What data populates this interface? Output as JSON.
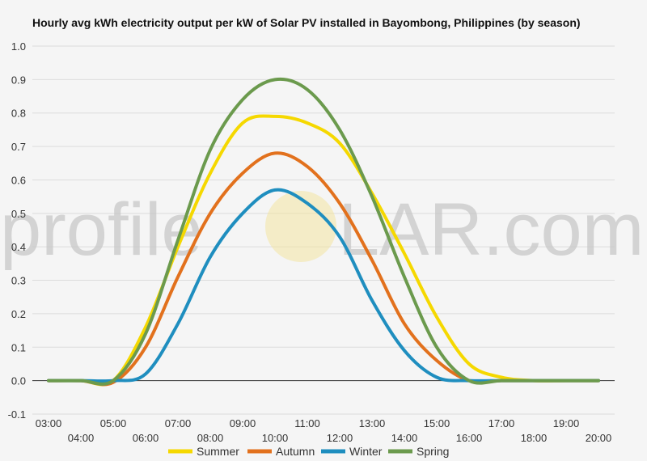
{
  "chart_data": {
    "type": "line",
    "title": "Hourly avg kWh electricity output per kW of Solar PV installed in Bayombong, Philippines (by season)",
    "xlabel": "",
    "ylabel": "",
    "ylim": [
      -0.1,
      1.0
    ],
    "yticks": [
      "1.0",
      "0.9",
      "0.8",
      "0.7",
      "0.6",
      "0.5",
      "0.4",
      "0.3",
      "0.2",
      "0.1",
      "0.0",
      "-0.1"
    ],
    "categories": [
      "03:00",
      "04:00",
      "05:00",
      "06:00",
      "07:00",
      "08:00",
      "09:00",
      "10:00",
      "11:00",
      "12:00",
      "13:00",
      "14:00",
      "15:00",
      "16:00",
      "17:00",
      "18:00",
      "19:00",
      "20:00"
    ],
    "grid": true,
    "legend_position": "bottom",
    "series": [
      {
        "name": "Summer",
        "color": "#f5d800",
        "values": [
          0,
          0,
          0,
          0.16,
          0.4,
          0.62,
          0.77,
          0.79,
          0.77,
          0.71,
          0.56,
          0.38,
          0.19,
          0.05,
          0.01,
          0,
          0,
          0
        ]
      },
      {
        "name": "Autumn",
        "color": "#e2711d",
        "values": [
          0,
          0,
          -0.005,
          0.1,
          0.31,
          0.5,
          0.62,
          0.68,
          0.64,
          0.53,
          0.36,
          0.17,
          0.06,
          0,
          0,
          0,
          0,
          0
        ]
      },
      {
        "name": "Winter",
        "color": "#1f8ebf",
        "values": [
          0,
          0,
          0,
          0.02,
          0.17,
          0.37,
          0.5,
          0.57,
          0.53,
          0.43,
          0.24,
          0.09,
          0.01,
          0,
          0,
          0,
          0,
          0
        ]
      },
      {
        "name": "Spring",
        "color": "#6b9a4d",
        "values": [
          0,
          0,
          0,
          0.14,
          0.42,
          0.69,
          0.84,
          0.9,
          0.87,
          0.75,
          0.55,
          0.31,
          0.1,
          0,
          0,
          0,
          0,
          0
        ]
      }
    ]
  },
  "watermark": {
    "text_left": "profile",
    "text_right": "LAR.com"
  }
}
